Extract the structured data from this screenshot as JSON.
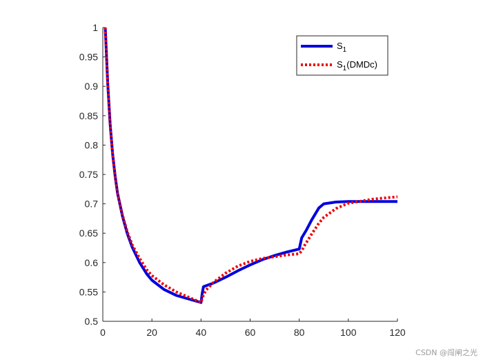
{
  "chart_data": {
    "type": "line",
    "title": "",
    "xlabel": "",
    "ylabel": "",
    "xlim": [
      0,
      120
    ],
    "ylim": [
      0.5,
      1
    ],
    "xticks": [
      "0",
      "20",
      "40",
      "60",
      "80",
      "100",
      "120"
    ],
    "yticks": [
      "0.5",
      "0.55",
      "0.6",
      "0.65",
      "0.7",
      "0.75",
      "0.8",
      "0.85",
      "0.9",
      "0.95",
      "1"
    ],
    "grid": false,
    "legend_position": "top-right",
    "series": [
      {
        "name": "S_1",
        "legend_main": "S",
        "legend_sub": "1",
        "legend_suffix": "",
        "color": "#0000dd",
        "style": "solid",
        "x": [
          1,
          2,
          3,
          4,
          5,
          6,
          8,
          10,
          12,
          15,
          18,
          20,
          25,
          30,
          35,
          40,
          40.5,
          41,
          45,
          50,
          55,
          60,
          65,
          70,
          75,
          80,
          81,
          83,
          85,
          88,
          90,
          95,
          100,
          110,
          120
        ],
        "y": [
          1.0,
          0.905,
          0.835,
          0.785,
          0.748,
          0.718,
          0.679,
          0.649,
          0.626,
          0.6,
          0.58,
          0.57,
          0.554,
          0.544,
          0.538,
          0.532,
          0.548,
          0.559,
          0.565,
          0.575,
          0.586,
          0.596,
          0.605,
          0.612,
          0.618,
          0.623,
          0.642,
          0.656,
          0.672,
          0.693,
          0.7,
          0.703,
          0.704,
          0.704,
          0.704
        ]
      },
      {
        "name": "S_1(DMDc)",
        "legend_main": "S",
        "legend_sub": "1",
        "legend_suffix": "(DMDc)",
        "color": "#ee0000",
        "style": "dotted",
        "x": [
          1,
          2,
          3,
          4,
          5,
          6,
          8,
          10,
          12,
          15,
          18,
          20,
          25,
          30,
          35,
          40,
          41,
          42,
          45,
          50,
          55,
          60,
          65,
          70,
          75,
          80,
          81,
          82,
          85,
          88,
          90,
          95,
          100,
          110,
          120
        ],
        "y": [
          1.0,
          0.905,
          0.833,
          0.784,
          0.747,
          0.718,
          0.681,
          0.652,
          0.63,
          0.607,
          0.587,
          0.578,
          0.562,
          0.55,
          0.541,
          0.532,
          0.545,
          0.553,
          0.566,
          0.582,
          0.594,
          0.602,
          0.607,
          0.61,
          0.613,
          0.615,
          0.62,
          0.628,
          0.648,
          0.667,
          0.677,
          0.692,
          0.701,
          0.708,
          0.712
        ]
      }
    ]
  },
  "watermark": "CSDN @闯闸之光"
}
